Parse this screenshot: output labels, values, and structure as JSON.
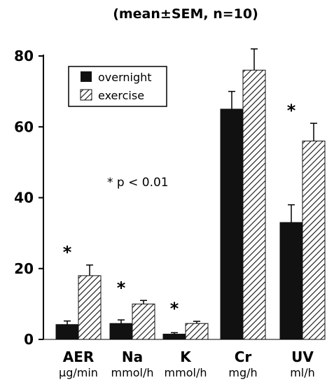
{
  "chart_data": {
    "type": "bar",
    "subtitle": "(mean±SEM, n=10)",
    "categories": [
      "AER",
      "Na",
      "K",
      "Cr",
      "UV"
    ],
    "units": [
      "µg/min",
      "mmol/h",
      "mmol/h",
      "mg/h",
      "ml/h"
    ],
    "series": [
      {
        "name": "overnight",
        "values": [
          4.2,
          4.5,
          1.5,
          65,
          33
        ],
        "errors": [
          1.0,
          1.0,
          0.4,
          5,
          5
        ],
        "color": "#111111",
        "fill": "solid"
      },
      {
        "name": "exercise",
        "values": [
          18,
          10,
          4.5,
          76,
          56
        ],
        "errors": [
          3.0,
          1.0,
          0.6,
          6,
          5
        ],
        "color": "#111111",
        "fill": "hatched"
      }
    ],
    "ylim": [
      0,
      80
    ],
    "yticks": [
      "0",
      "20",
      "40",
      "60",
      "80"
    ],
    "significance": {
      "marker": "*",
      "categories": [
        "AER",
        "Na",
        "K",
        "UV"
      ]
    },
    "annotation": "* p < 0.01",
    "legend_position": "top-left",
    "grid": false
  }
}
